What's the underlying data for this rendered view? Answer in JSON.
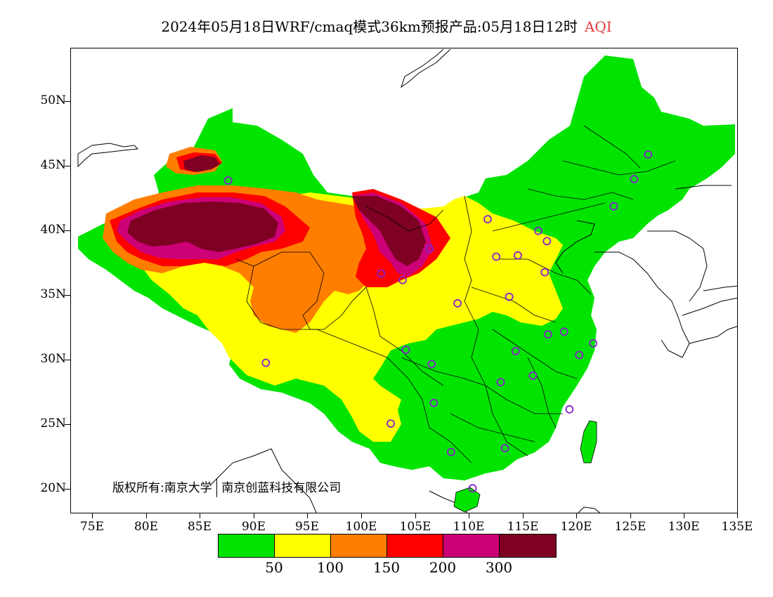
{
  "title": {
    "main": "2024年05月18日WRF/cmaq模式36km预报产品:05月18日12时",
    "variable": "AQI"
  },
  "axes": {
    "lat_labels": [
      "50N",
      "45N",
      "40N",
      "35N",
      "30N",
      "25N",
      "20N"
    ],
    "lon_labels": [
      "75E",
      "80E",
      "85E",
      "90E",
      "95E",
      "100E",
      "105E",
      "110E",
      "115E",
      "120E",
      "125E",
      "130E",
      "135E"
    ]
  },
  "copyright": {
    "prefix": "版权所有:南京大学",
    "org": "南京创蓝科技有限公司"
  },
  "legend": {
    "colors": [
      "#00e400",
      "#ffff00",
      "#ff7e00",
      "#ff0000",
      "#cc0077",
      "#7e0023"
    ],
    "labels": [
      "50",
      "100",
      "150",
      "200",
      "300"
    ]
  },
  "map_data": {
    "extent": {
      "lon_min": 73,
      "lon_max": 135,
      "lat_min": 18,
      "lat_max": 54
    },
    "station_marker_color": "#8822cc",
    "stations": [
      {
        "lon": 126.6,
        "lat": 45.8
      },
      {
        "lon": 125.3,
        "lat": 43.9
      },
      {
        "lon": 123.4,
        "lat": 41.8
      },
      {
        "lon": 111.7,
        "lat": 40.8
      },
      {
        "lon": 116.4,
        "lat": 39.9
      },
      {
        "lon": 117.2,
        "lat": 39.1
      },
      {
        "lon": 114.5,
        "lat": 38.0
      },
      {
        "lon": 112.5,
        "lat": 37.9
      },
      {
        "lon": 106.3,
        "lat": 38.5
      },
      {
        "lon": 103.8,
        "lat": 36.1
      },
      {
        "lon": 101.8,
        "lat": 36.6
      },
      {
        "lon": 117.0,
        "lat": 36.7
      },
      {
        "lon": 113.7,
        "lat": 34.8
      },
      {
        "lon": 108.9,
        "lat": 34.3
      },
      {
        "lon": 117.3,
        "lat": 31.9
      },
      {
        "lon": 118.8,
        "lat": 32.1
      },
      {
        "lon": 121.5,
        "lat": 31.2
      },
      {
        "lon": 120.2,
        "lat": 30.3
      },
      {
        "lon": 114.3,
        "lat": 30.6
      },
      {
        "lon": 104.1,
        "lat": 30.7
      },
      {
        "lon": 106.5,
        "lat": 29.6
      },
      {
        "lon": 112.9,
        "lat": 28.2
      },
      {
        "lon": 115.9,
        "lat": 28.7
      },
      {
        "lon": 106.7,
        "lat": 26.6
      },
      {
        "lon": 102.7,
        "lat": 25.0
      },
      {
        "lon": 119.3,
        "lat": 26.1
      },
      {
        "lon": 113.3,
        "lat": 23.1
      },
      {
        "lon": 108.3,
        "lat": 22.8
      },
      {
        "lon": 110.3,
        "lat": 20.0
      },
      {
        "lon": 87.6,
        "lat": 43.8
      },
      {
        "lon": 91.1,
        "lat": 29.7
      }
    ]
  }
}
